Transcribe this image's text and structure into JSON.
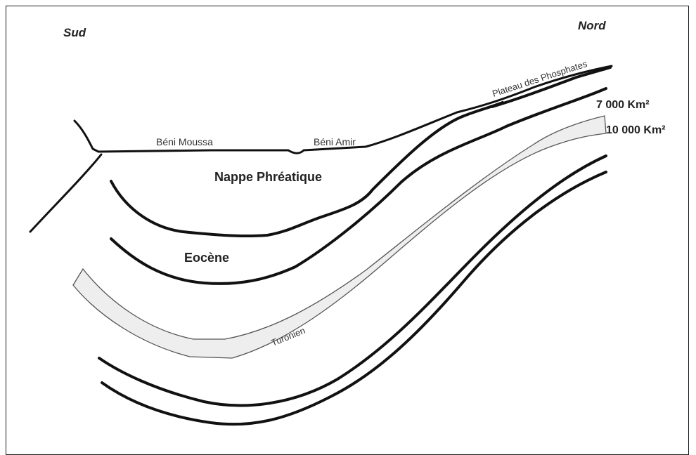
{
  "labels": {
    "south": "Sud",
    "north": "Nord",
    "plateau": "Plateau des Phosphates",
    "beni_moussa": "Béni Moussa",
    "beni_amir": "Béni Amir",
    "nappe": "Nappe Phréatique",
    "eocene": "Eocène",
    "turonien": "Turonien",
    "area_7000": "7 000 Km²",
    "area_10000": "10 000 Km²"
  }
}
